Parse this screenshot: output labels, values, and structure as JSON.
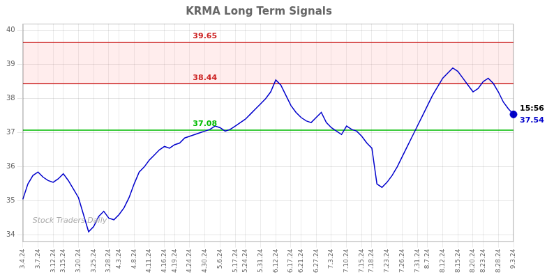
{
  "chart_data": {
    "type": "line",
    "title": "KRMA Long Term Signals",
    "watermark": "Stock Traders Daily",
    "categories": [
      "3.4.24",
      null,
      null,
      "3.7.24",
      null,
      null,
      "3.12.24",
      null,
      "3.15.24",
      null,
      null,
      "3.20.24",
      null,
      null,
      "3.25.24",
      null,
      null,
      "3.28.24",
      null,
      "4.3.24",
      null,
      null,
      "4.8.24",
      null,
      null,
      "4.11.24",
      null,
      null,
      "4.16.24",
      null,
      "4.19.24",
      null,
      null,
      "4.24.24",
      null,
      null,
      "4.30.24",
      null,
      null,
      "5.6.24",
      null,
      null,
      "5.17.24",
      null,
      "5.24.24",
      null,
      null,
      "5.31.24",
      null,
      null,
      "6.12.24",
      null,
      null,
      "6.17.24",
      null,
      "6.21.24",
      null,
      null,
      "6.27.24",
      null,
      null,
      "7.3.24",
      null,
      null,
      "7.10.24",
      null,
      null,
      "7.15.24",
      null,
      "7.18.24",
      null,
      null,
      "7.23.24",
      null,
      null,
      "7.26.24",
      null,
      null,
      "7.31.24",
      null,
      "8.7.24",
      null,
      null,
      "8.12.24",
      null,
      null,
      "8.15.24",
      null,
      null,
      "8.20.24",
      null,
      "8.23.24",
      null,
      null,
      "8.28.24",
      null,
      null,
      "9.3.24"
    ],
    "series": [
      {
        "color": "#0000cc",
        "values": [
          35.05,
          35.5,
          35.75,
          35.85,
          35.7,
          35.6,
          35.55,
          35.65,
          35.8,
          35.6,
          35.35,
          35.1,
          34.6,
          34.1,
          34.25,
          34.55,
          34.7,
          34.5,
          34.45,
          34.6,
          34.8,
          35.1,
          35.5,
          35.85,
          36.0,
          36.2,
          36.35,
          36.5,
          36.6,
          36.55,
          36.65,
          36.7,
          36.85,
          36.9,
          36.95,
          37.0,
          37.05,
          37.1,
          37.2,
          37.15,
          37.05,
          37.1,
          37.2,
          37.3,
          37.4,
          37.55,
          37.7,
          37.85,
          38.0,
          38.2,
          38.55,
          38.4,
          38.1,
          37.8,
          37.6,
          37.45,
          37.35,
          37.3,
          37.45,
          37.6,
          37.3,
          37.15,
          37.05,
          36.95,
          37.2,
          37.1,
          37.05,
          36.9,
          36.7,
          36.55,
          35.5,
          35.4,
          35.55,
          35.75,
          36.0,
          36.3,
          36.6,
          36.9,
          37.2,
          37.5,
          37.8,
          38.1,
          38.35,
          38.6,
          38.75,
          38.9,
          38.8,
          38.6,
          38.4,
          38.2,
          38.3,
          38.5,
          38.6,
          38.45,
          38.2,
          37.9,
          37.7,
          37.54
        ]
      }
    ],
    "lines": [
      {
        "value": 37.08,
        "label": "37.08",
        "color": "#00bb00"
      },
      {
        "value": 38.44,
        "label": "38.44",
        "color": "#cc2222"
      },
      {
        "value": 39.65,
        "label": "39.65",
        "color": "#cc2222"
      }
    ],
    "band": {
      "from": 38.44,
      "to": 39.65,
      "color": "#ff9999"
    },
    "final_point": {
      "value": 37.54,
      "label": "37.54",
      "time_label": "15:56",
      "color": "#0000cc"
    },
    "ylim": [
      33.8,
      40.2
    ],
    "yticks": [
      34,
      35,
      36,
      37,
      38,
      39,
      40
    ],
    "grid": true
  }
}
